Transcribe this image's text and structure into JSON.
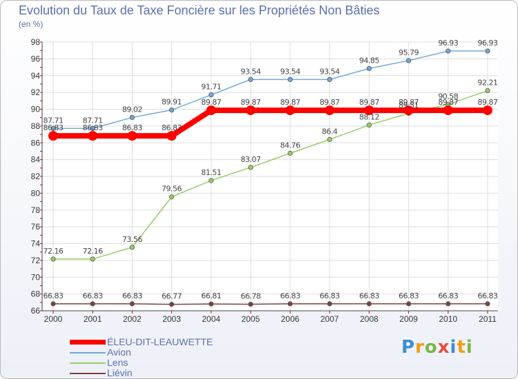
{
  "title": "Evolution du Taux de Taxe Foncière sur les Propriétés Non Bâties",
  "subtitle": "(en %)",
  "logo": [
    "P",
    "r",
    "o",
    "x",
    "i",
    "t",
    "i"
  ],
  "chart_data": {
    "type": "line",
    "categories": [
      "2000",
      "2001",
      "2002",
      "2003",
      "2004",
      "2005",
      "2006",
      "2007",
      "2008",
      "2009",
      "2010",
      "2011"
    ],
    "ylim": [
      66,
      98
    ],
    "yticks": [
      "66",
      "68",
      "70",
      "72",
      "74",
      "76",
      "78",
      "80",
      "82",
      "84",
      "86",
      "88",
      "90",
      "92",
      "94",
      "96",
      "98"
    ],
    "grid": true,
    "legend_position": "bottom-left",
    "series": [
      {
        "name": "ÉLEU-DIT-LEAUWETTE",
        "color": "#ff0000",
        "values": [
          86.83,
          86.83,
          86.83,
          86.83,
          89.87,
          89.87,
          89.87,
          89.87,
          89.87,
          89.87,
          89.87,
          89.87
        ],
        "labels": [
          "86.83",
          "86.83",
          "86.83",
          "86.83",
          "89.87",
          "89.87",
          "89.87",
          "89.87",
          "89.87",
          "89.87",
          "89.87",
          "89.87"
        ]
      },
      {
        "name": "Avion",
        "color": "#6fa8dc",
        "values": [
          87.71,
          87.71,
          89.02,
          89.91,
          91.71,
          93.54,
          93.54,
          93.54,
          94.85,
          95.79,
          96.93,
          96.93
        ],
        "labels": [
          "87.71",
          "87.71",
          "89.02",
          "89.91",
          "91.71",
          "93.54",
          "93.54",
          "93.54",
          "94.85",
          "95.79",
          "96.93",
          "96.93"
        ]
      },
      {
        "name": "Lens",
        "color": "#99cc66",
        "values": [
          72.16,
          72.16,
          73.56,
          79.56,
          81.51,
          83.07,
          84.76,
          86.4,
          88.12,
          89.51,
          90.58,
          92.21
        ],
        "labels": [
          "72.16",
          "72.16",
          "73.56",
          "79.56",
          "81.51",
          "83.07",
          "84.76",
          "86.4",
          "88.12",
          "89.51",
          "90.58",
          "92.21"
        ]
      },
      {
        "name": "Liévin",
        "color": "#7f3f3f",
        "values": [
          66.83,
          66.83,
          66.83,
          66.77,
          66.81,
          66.78,
          66.83,
          66.83,
          66.83,
          66.83,
          66.83,
          66.83
        ],
        "labels": [
          "66.83",
          "66.83",
          "66.83",
          "66.77",
          "66.81",
          "66.78",
          "66.83",
          "66.83",
          "66.83",
          "66.83",
          "66.83",
          "66.83"
        ]
      }
    ]
  }
}
